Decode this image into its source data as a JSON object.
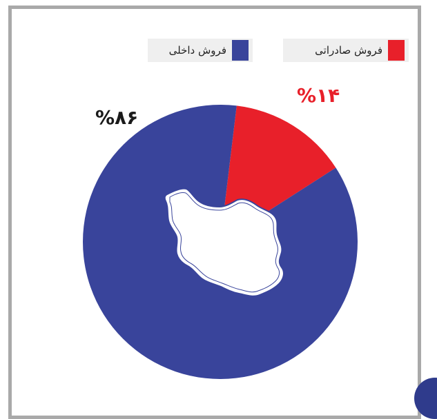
{
  "chart_data": {
    "type": "pie",
    "title": "",
    "legend_placement": "top",
    "slices": [
      {
        "name": "فروش صادراتی",
        "value": 14,
        "label": "%۱۴",
        "color": "#e8202a"
      },
      {
        "name": "فروش داخلی",
        "value": 86,
        "label": "%۸۶",
        "color": "#39449b"
      }
    ],
    "center_icon": "iran-map-icon"
  },
  "legend": {
    "export_label": "فروش صادراتی",
    "domestic_label": "فروش داخلی"
  },
  "labels": {
    "export_pct": "%۱۴",
    "domestic_pct": "%۸۶"
  },
  "colors": {
    "export": "#e8202a",
    "domestic": "#39449b",
    "frame": "#a9a9a9"
  }
}
